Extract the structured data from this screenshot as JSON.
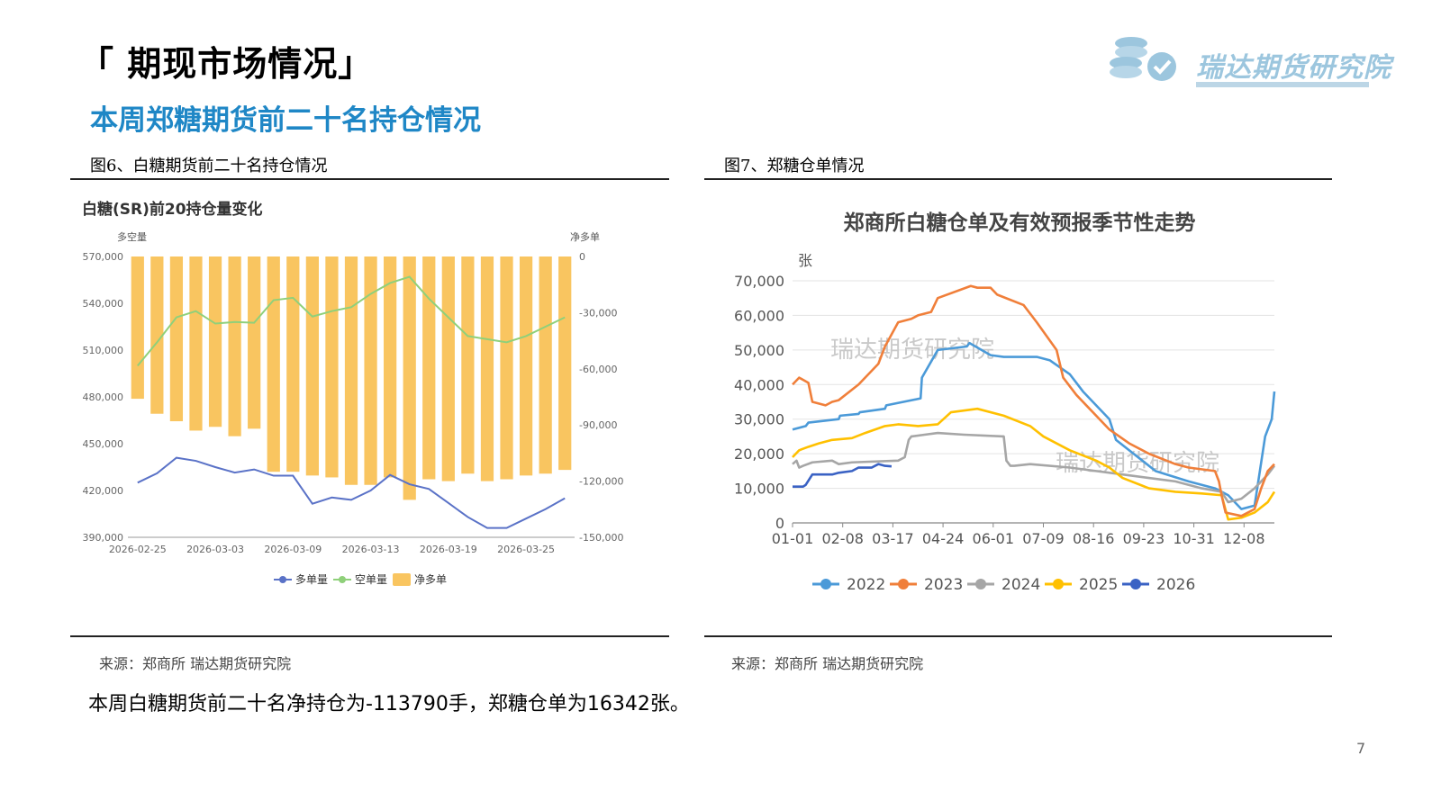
{
  "header": {
    "main_title": "「 期现市场情况」",
    "sub_title": "本周郑糖期货前二十名持仓情况",
    "logo_text": "瑞达期货研究院"
  },
  "figure6": {
    "caption": "图6、白糖期货前二十名持仓情况",
    "source": "来源：郑商所    瑞达期货研究院"
  },
  "figure7": {
    "caption": "图7、郑糖仓单情况",
    "source": "来源：郑商所  瑞达期货研究院"
  },
  "summary": "本周白糖期货前二十名净持仓为-113790手，郑糖仓单为16342张。",
  "page_number": "7",
  "colors": {
    "accent": "#1f87c6",
    "bar": "#f9c560",
    "long": "#5a72c7",
    "short": "#8fd07a",
    "y2022": "#4b9ad8",
    "y2023": "#f07f3a",
    "y2024": "#a6a6a6",
    "y2025": "#ffc000",
    "y2026": "#3a62c4"
  },
  "chart_data": [
    {
      "type": "bar",
      "title": "白糖(SR)前20持仓量变化",
      "left_axis_label": "多空量",
      "right_axis_label": "净多单",
      "ylim": [
        390000,
        570000
      ],
      "y2lim": [
        -150000,
        0
      ],
      "yticks": [
        "570,000",
        "540,000",
        "510,000",
        "480,000",
        "450,000",
        "420,000",
        "390,000"
      ],
      "y2ticks": [
        "0",
        "-30,000",
        "-60,000",
        "-90,000",
        "-120,000",
        "-150,000"
      ],
      "xtick_labels": [
        "2026-02-25",
        "2026-03-03",
        "2026-03-09",
        "2026-03-13",
        "2026-03-19",
        "2026-03-25"
      ],
      "legend": [
        "多单量",
        "空单量",
        "净多单"
      ],
      "series": [
        {
          "name": "多单量",
          "kind": "line",
          "axis": "left",
          "values": [
            425000,
            431000,
            441000,
            439000,
            435000,
            431500,
            433500,
            429500,
            429500,
            411500,
            415500,
            414000,
            420000,
            430000,
            424000,
            421000,
            412000,
            403000,
            396000,
            396000,
            402000,
            408000,
            415000
          ]
        },
        {
          "name": "空单量",
          "kind": "line",
          "axis": "left",
          "values": [
            500000,
            515000,
            531000,
            535000,
            527000,
            528000,
            527500,
            542000,
            543500,
            531500,
            535000,
            537500,
            546000,
            553000,
            557000,
            543000,
            531000,
            519000,
            517000,
            515000,
            519000,
            525000,
            531000
          ]
        },
        {
          "name": "净多单",
          "kind": "bar",
          "axis": "right",
          "values": [
            -76000,
            -84000,
            -88000,
            -93000,
            -91000,
            -96000,
            -92000,
            -115000,
            -115000,
            -117000,
            -118000,
            -122000,
            -122000,
            -118000,
            -130000,
            -119000,
            -120000,
            -116000,
            -120000,
            -119000,
            -117000,
            -116000,
            -114000
          ]
        }
      ]
    },
    {
      "type": "line",
      "title": "郑商所白糖仓单及有效预报季节性走势",
      "ylabel": "张",
      "ylim": [
        0,
        70000
      ],
      "yticks": [
        "70,000",
        "60,000",
        "50,000",
        "40,000",
        "30,000",
        "20,000",
        "10,000",
        "0"
      ],
      "xtick_labels": [
        "01-01",
        "02-08",
        "03-17",
        "04-24",
        "06-01",
        "07-09",
        "08-16",
        "09-23",
        "10-31",
        "12-08"
      ],
      "x_day_range": [
        0,
        365
      ],
      "watermark": "瑞达期货研究院",
      "series": [
        {
          "name": "2022",
          "x": [
            0,
            10,
            12,
            35,
            36,
            50,
            51,
            70,
            71,
            97,
            98,
            107,
            110,
            132,
            134,
            150,
            160,
            185,
            195,
            210,
            220,
            240,
            245,
            265,
            275,
            300,
            320,
            330,
            340,
            350,
            358,
            363,
            365
          ],
          "y": [
            27000,
            28000,
            29000,
            30000,
            31000,
            31500,
            32000,
            33000,
            34000,
            36000,
            42000,
            48000,
            50000,
            51000,
            52000,
            48500,
            48000,
            48000,
            47000,
            43000,
            38000,
            30000,
            24000,
            18000,
            15000,
            12000,
            10000,
            8000,
            4000,
            5000,
            25000,
            30000,
            38000
          ]
        },
        {
          "name": "2023",
          "x": [
            0,
            5,
            12,
            15,
            25,
            30,
            35,
            50,
            65,
            70,
            80,
            90,
            95,
            105,
            110,
            135,
            140,
            150,
            155,
            175,
            185,
            200,
            205,
            215,
            225,
            240,
            255,
            270,
            290,
            300,
            320,
            323,
            325,
            328,
            340,
            350,
            355,
            360,
            365
          ],
          "y": [
            40000,
            42000,
            40500,
            35000,
            34000,
            35000,
            35500,
            40000,
            46000,
            51000,
            58000,
            59000,
            60000,
            61000,
            65000,
            68500,
            68000,
            68000,
            66000,
            63000,
            58000,
            50000,
            42000,
            37000,
            33000,
            27000,
            23000,
            20000,
            17000,
            16000,
            15000,
            12000,
            8000,
            3000,
            2000,
            4000,
            10000,
            15000,
            17000
          ]
        },
        {
          "name": "2024",
          "x": [
            0,
            3,
            5,
            8,
            15,
            30,
            35,
            45,
            80,
            85,
            88,
            90,
            100,
            110,
            130,
            160,
            162,
            165,
            168,
            180,
            210,
            230,
            250,
            270,
            290,
            310,
            325,
            330,
            340,
            350,
            360,
            365
          ],
          "y": [
            17000,
            18000,
            16000,
            16500,
            17500,
            18000,
            17000,
            17500,
            18000,
            19000,
            24000,
            25000,
            25500,
            26000,
            25500,
            25000,
            18000,
            16500,
            16500,
            17000,
            16000,
            15000,
            14000,
            13000,
            12000,
            10000,
            9000,
            6000,
            7000,
            10000,
            14000,
            16500
          ]
        },
        {
          "name": "2025",
          "x": [
            0,
            5,
            12,
            20,
            30,
            45,
            55,
            70,
            80,
            95,
            110,
            120,
            140,
            160,
            180,
            190,
            210,
            230,
            240,
            250,
            270,
            290,
            310,
            325,
            330,
            340,
            350,
            360,
            365
          ],
          "y": [
            19000,
            21000,
            22000,
            23000,
            24000,
            24500,
            26000,
            28000,
            28500,
            28000,
            28500,
            32000,
            33000,
            31000,
            28000,
            25000,
            21000,
            18000,
            16000,
            13000,
            10000,
            9000,
            8500,
            8000,
            1000,
            1500,
            3000,
            6000,
            9000
          ]
        },
        {
          "name": "2026",
          "x": [
            0,
            8,
            10,
            15,
            20,
            30,
            35,
            45,
            50,
            60,
            65,
            70,
            75
          ],
          "y": [
            10500,
            10500,
            11000,
            14000,
            14000,
            14000,
            14500,
            15000,
            16000,
            16000,
            17000,
            16500,
            16342
          ]
        }
      ]
    }
  ]
}
